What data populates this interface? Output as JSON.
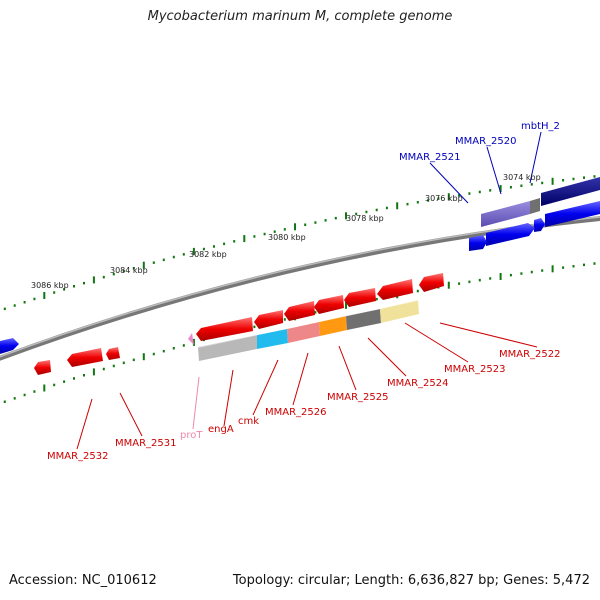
{
  "title": "Mycobacterium marinum M, complete genome",
  "footer": {
    "accession": "Accession: NC_010612",
    "summary": "Topology: circular; Length: 6,636,827 bp; Genes: 5,472"
  },
  "colors": {
    "forward_gene": "#0000ee",
    "reverse_gene": "#ee0000",
    "forward_label": "#0000bb",
    "reverse_label": "#cc0000",
    "trna_label": "#ee88aa",
    "backbone": "#888888",
    "ticks": "#117711"
  },
  "kbp_labels": [
    "3074 kbp",
    "3076 kbp",
    "3078 kbp",
    "3080 kbp",
    "3082 kbp",
    "3084 kbp",
    "3086 kbp"
  ],
  "gene_labels": {
    "mbtH_2": "mbtH_2",
    "MMAR_2520": "MMAR_2520",
    "MMAR_2521": "MMAR_2521",
    "MMAR_2522": "MMAR_2522",
    "MMAR_2523": "MMAR_2523",
    "MMAR_2524": "MMAR_2524",
    "MMAR_2525": "MMAR_2525",
    "MMAR_2526": "MMAR_2526",
    "cmk": "cmk",
    "engA": "engA",
    "proT": "proT",
    "MMAR_2531": "MMAR_2531",
    "MMAR_2532": "MMAR_2532"
  }
}
